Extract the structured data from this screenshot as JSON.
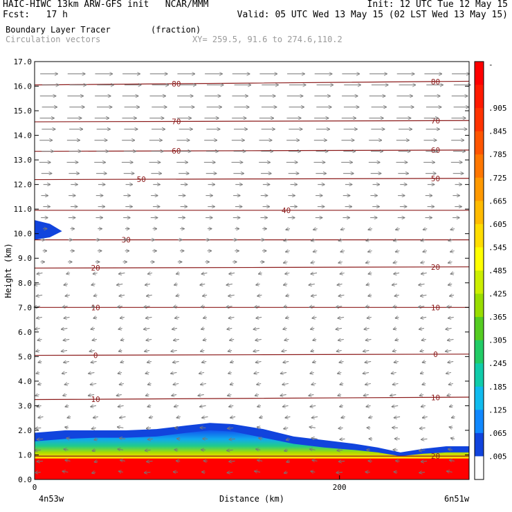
{
  "header": {
    "line1_left": "HAIC-HIWC 13km ARW-GFS init   NCAR/MMM",
    "line1_right": "Init: 12 UTC Tue 12 May 15",
    "line2_left": "Fcst:   17 h",
    "line2_right": "Valid: 05 UTC Wed 13 May 15 (02 LST Wed 13 May 15)",
    "field_name": "Boundary Layer Tracer",
    "field_units": "(fraction)",
    "overlay_name": "Circulation vectors",
    "xsec_coords": "XY= 259.5, 91.6 to 274.6,110.2"
  },
  "chart_data": {
    "type": "heatmap",
    "title": "Boundary Layer Tracer",
    "ylabel": "Height (km)",
    "xlabel": "Distance (km)",
    "xlim": [
      0,
      285
    ],
    "ylim": [
      0,
      17
    ],
    "y_ticks": [
      "0.0",
      "1.0",
      "2.0",
      "3.0",
      "4.0",
      "5.0",
      "6.0",
      "7.0",
      "8.0",
      "9.0",
      "10.0",
      "11.0",
      "12.0",
      "13.0",
      "14.0",
      "15.0",
      "16.0",
      "17.0"
    ],
    "x_ticks": [
      {
        "value": 0,
        "label": "0"
      },
      {
        "value": 200,
        "label": "200"
      }
    ],
    "x_endpoints": {
      "left": "4n53w",
      "right": "6n51w"
    },
    "colorbar": {
      "labels": [
        "-",
        ".905",
        ".845",
        ".785",
        ".725",
        ".665",
        ".605",
        ".545",
        ".485",
        ".425",
        ".365",
        ".305",
        ".245",
        ".185",
        ".125",
        ".065",
        ".005"
      ],
      "colors": [
        "#ff0000",
        "#ff1a00",
        "#ff3300",
        "#ff5500",
        "#ff7700",
        "#ff9900",
        "#ffbb00",
        "#ffdd00",
        "#ffff00",
        "#ccee00",
        "#99dd00",
        "#55cc22",
        "#22cc66",
        "#11ccaa",
        "#11bbee",
        "#1188ff",
        "#1144dd",
        "#ffffff"
      ]
    },
    "bl_top_km": [
      [
        0,
        1.9
      ],
      [
        20,
        2.0
      ],
      [
        40,
        2.0
      ],
      [
        60,
        2.0
      ],
      [
        80,
        2.05
      ],
      [
        100,
        2.2
      ],
      [
        115,
        2.3
      ],
      [
        130,
        2.25
      ],
      [
        150,
        2.05
      ],
      [
        170,
        1.75
      ],
      [
        190,
        1.6
      ],
      [
        210,
        1.45
      ],
      [
        225,
        1.3
      ],
      [
        240,
        1.1
      ],
      [
        255,
        1.25
      ],
      [
        270,
        1.35
      ],
      [
        285,
        1.35
      ]
    ],
    "bl_core_top_km": [
      [
        0,
        1.55
      ],
      [
        20,
        1.65
      ],
      [
        40,
        1.7
      ],
      [
        60,
        1.7
      ],
      [
        80,
        1.75
      ],
      [
        100,
        1.9
      ],
      [
        115,
        2.0
      ],
      [
        130,
        1.95
      ],
      [
        150,
        1.7
      ],
      [
        170,
        1.45
      ],
      [
        190,
        1.3
      ],
      [
        210,
        1.2
      ],
      [
        225,
        1.1
      ],
      [
        240,
        0.95
      ],
      [
        255,
        1.05
      ],
      [
        270,
        1.1
      ],
      [
        285,
        1.1
      ]
    ],
    "upper_blob": [
      [
        0,
        10.55
      ],
      [
        10,
        10.4
      ],
      [
        18,
        10.1
      ],
      [
        10,
        9.85
      ],
      [
        0,
        9.75
      ]
    ],
    "isotherms": [
      {
        "label": "80",
        "y0": 16.05,
        "y1": 16.2,
        "label_x": [
          93,
          263
        ]
      },
      {
        "label": "70",
        "y0": 14.55,
        "y1": 14.6,
        "label_x": [
          93,
          263
        ]
      },
      {
        "label": "60",
        "y0": 13.35,
        "y1": 13.4,
        "label_x": [
          93,
          263
        ]
      },
      {
        "label": "50",
        "y0": 12.2,
        "y1": 12.25,
        "label_x": [
          70,
          263
        ]
      },
      {
        "label": "40",
        "y0": 10.95,
        "y1": 10.95,
        "label_x": [
          165
        ]
      },
      {
        "label": "30",
        "y0": 9.75,
        "y1": 9.75,
        "label_x": [
          60
        ]
      },
      {
        "label": "20",
        "y0": 8.6,
        "y1": 8.65,
        "label_x": [
          40,
          263
        ]
      },
      {
        "label": "10",
        "y0": 7.0,
        "y1": 7.0,
        "label_x": [
          40,
          263
        ]
      },
      {
        "label": "0",
        "y0": 5.05,
        "y1": 5.1,
        "label_x": [
          40,
          263
        ]
      },
      {
        "label": "10",
        "y0": 3.25,
        "y1": 3.35,
        "label_x": [
          40,
          263
        ]
      },
      {
        "label": "20",
        "y0": 0.95,
        "y1": 0.95,
        "label_x": [
          263
        ]
      }
    ]
  }
}
